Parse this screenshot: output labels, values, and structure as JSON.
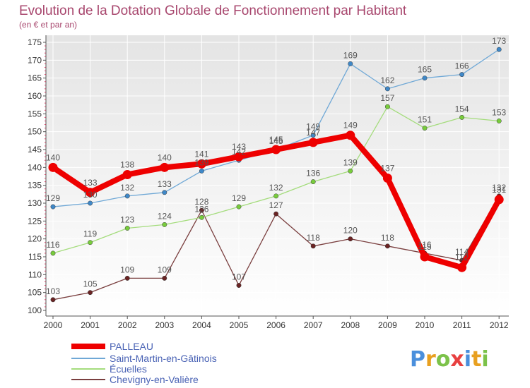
{
  "chart_data": {
    "type": "line",
    "title": "Evolution de la Dotation Globale de Fonctionnement par Habitant",
    "subtitle": "(en € et par an)",
    "xlabel": "",
    "ylabel": "",
    "categories": [
      "2000",
      "2001",
      "2002",
      "2003",
      "2004",
      "2005",
      "2006",
      "2007",
      "2008",
      "2009",
      "2010",
      "2011",
      "2012"
    ],
    "ylim": [
      100,
      175
    ],
    "yticks": [
      100,
      105,
      110,
      115,
      120,
      125,
      130,
      135,
      140,
      145,
      150,
      155,
      160,
      165,
      170,
      175
    ],
    "grid": true,
    "legend_position": "bottom-left",
    "series": [
      {
        "name": "PALLEAU",
        "color": "#ee0000",
        "marker": "#ee0000",
        "values": [
          140,
          133,
          138,
          140,
          141,
          143,
          145,
          147,
          149,
          137,
          115,
          112,
          131
        ]
      },
      {
        "name": "Saint-Martin-en-Gâtinois",
        "color": "#6fa8d6",
        "marker": "#3f88c8",
        "values": [
          129,
          130,
          132,
          133,
          139,
          142,
          145,
          149,
          169,
          162,
          165,
          166,
          173
        ]
      },
      {
        "name": "Écuelles",
        "color": "#a4dc7c",
        "marker": "#78cc3c",
        "values": [
          116,
          119,
          123,
          124,
          126,
          129,
          132,
          136,
          139,
          157,
          151,
          154,
          153
        ]
      },
      {
        "name": "Chevigny-en-Valière",
        "color": "#7a3f3f",
        "marker": "#6a2424",
        "values": [
          103,
          105,
          109,
          109,
          128,
          107,
          127,
          118,
          120,
          118,
          116,
          114,
          132
        ]
      }
    ]
  },
  "watermark": {
    "letters": [
      "P",
      "r",
      "o",
      "x",
      "i",
      "t",
      "i"
    ],
    "colors": [
      "#4a8fdc",
      "#e8a020",
      "#7cc24a",
      "#e84040",
      "#4a8fdc",
      "#e8a020",
      "#7cc24a"
    ]
  }
}
